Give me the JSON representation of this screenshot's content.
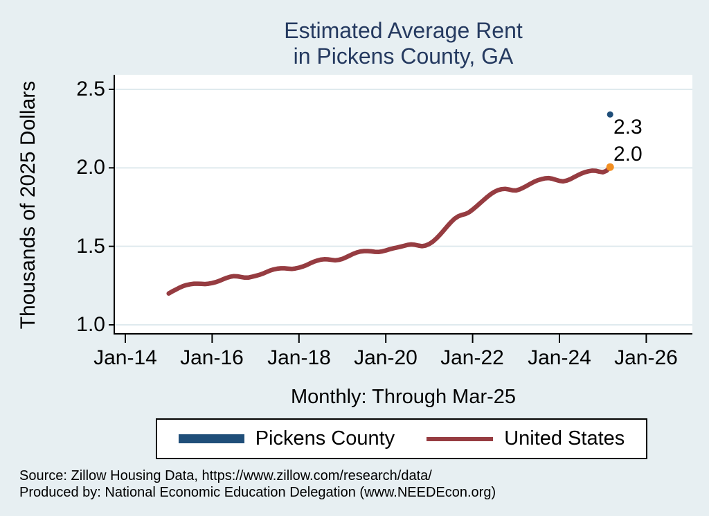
{
  "chart": {
    "title_line1": "Estimated Average Rent",
    "title_line2": "in Pickens County, GA",
    "y_axis_title": "Thousands of 2025 Dollars",
    "x_subtitle": "Monthly: Through Mar-25",
    "end_label_pickens": "2.3",
    "end_label_us": "2.0",
    "source_line1": "Source: Zillow Housing Data, https://www.zillow.com/research/data/",
    "source_line2": "Produced by: National Economic Education Delegation (www.NEEDEcon.org)"
  },
  "legend": {
    "items": [
      {
        "label": "Pickens County",
        "color": "#1f4e79"
      },
      {
        "label": "United States",
        "color": "#963c41"
      }
    ]
  },
  "colors": {
    "background": "#e7eff2",
    "plot_background": "#ffffff",
    "gridline": "#dfeaee",
    "axis": "#000000",
    "title_navy": "#253a60",
    "pickens_blue": "#1f4e79",
    "us_red": "#963c41",
    "end_marker_orange": "#f28e20"
  },
  "chart_data": {
    "type": "line",
    "title": "Estimated Average Rent in Pickens County, GA",
    "subtitle": "Monthly: Through Mar-25",
    "xlabel": "",
    "ylabel": "Thousands of 2025 Dollars",
    "x_tick_labels": [
      "Jan-14",
      "Jan-16",
      "Jan-18",
      "Jan-20",
      "Jan-22",
      "Jan-24",
      "Jan-26"
    ],
    "y_tick_labels": [
      "2.5",
      "2.0",
      "1.5",
      "1.0"
    ],
    "ylim": [
      0.94,
      2.59
    ],
    "xlim_months": [
      "2013-10",
      "2027-02"
    ],
    "grid": "horizontal",
    "legend_position": "bottom",
    "series": [
      {
        "name": "United States",
        "color": "#963c41",
        "start_month": "2015-01",
        "end_month": "2025-03",
        "end_value_label": "2.0",
        "end_marker_color": "#f28e20",
        "monthly_values": [
          1.2,
          1.213,
          1.225,
          1.237,
          1.247,
          1.254,
          1.259,
          1.262,
          1.262,
          1.261,
          1.26,
          1.262,
          1.266,
          1.272,
          1.28,
          1.29,
          1.299,
          1.306,
          1.31,
          1.309,
          1.305,
          1.301,
          1.301,
          1.306,
          1.312,
          1.318,
          1.326,
          1.336,
          1.346,
          1.353,
          1.358,
          1.36,
          1.36,
          1.358,
          1.356,
          1.359,
          1.364,
          1.371,
          1.38,
          1.391,
          1.401,
          1.409,
          1.415,
          1.418,
          1.417,
          1.414,
          1.411,
          1.414,
          1.42,
          1.43,
          1.441,
          1.452,
          1.461,
          1.467,
          1.47,
          1.47,
          1.468,
          1.465,
          1.464,
          1.468,
          1.474,
          1.481,
          1.487,
          1.492,
          1.497,
          1.503,
          1.509,
          1.512,
          1.51,
          1.505,
          1.501,
          1.505,
          1.515,
          1.53,
          1.551,
          1.575,
          1.601,
          1.628,
          1.654,
          1.676,
          1.691,
          1.7,
          1.706,
          1.717,
          1.734,
          1.753,
          1.774,
          1.794,
          1.814,
          1.832,
          1.847,
          1.858,
          1.864,
          1.866,
          1.862,
          1.857,
          1.856,
          1.863,
          1.874,
          1.886,
          1.899,
          1.911,
          1.921,
          1.928,
          1.933,
          1.935,
          1.931,
          1.924,
          1.917,
          1.914,
          1.919,
          1.928,
          1.94,
          1.952,
          1.963,
          1.972,
          1.978,
          1.982,
          1.981,
          1.976,
          1.972,
          1.981,
          2.005
        ]
      },
      {
        "name": "Pickens County",
        "color": "#1f4e79",
        "marker": "dot",
        "end_value_label": "2.3",
        "points": [
          {
            "month": "2025-03",
            "value": 2.34
          }
        ]
      }
    ]
  }
}
